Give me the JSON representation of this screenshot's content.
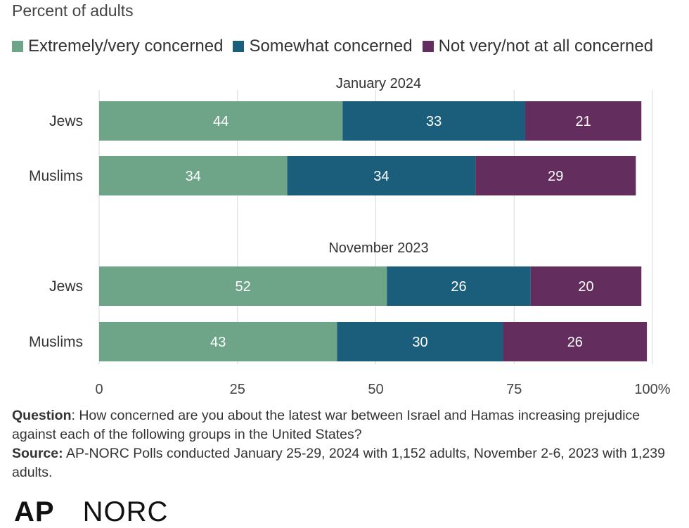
{
  "subtitle": "Percent of adults",
  "legend": [
    {
      "label": "Extremely/very concerned",
      "color": "#6ea488"
    },
    {
      "label": "Somewhat concerned",
      "color": "#1a5e7c"
    },
    {
      "label": "Not very/not at all concerned",
      "color": "#632e5e"
    }
  ],
  "chart_data": {
    "type": "bar",
    "orientation": "horizontal",
    "stacked": true,
    "xlim": [
      0,
      100
    ],
    "x_ticks": [
      "0",
      "25",
      "50",
      "75",
      "100%"
    ],
    "grid": true,
    "legend_position": "top",
    "groups": [
      {
        "title": "January 2024",
        "categories": [
          "Jews",
          "Muslims"
        ],
        "series": [
          {
            "name": "Extremely/very concerned",
            "values": [
              44,
              34
            ]
          },
          {
            "name": "Somewhat concerned",
            "values": [
              33,
              34
            ]
          },
          {
            "name": "Not very/not at all concerned",
            "values": [
              21,
              29
            ]
          }
        ]
      },
      {
        "title": "November 2023",
        "categories": [
          "Jews",
          "Muslims"
        ],
        "series": [
          {
            "name": "Extremely/very concerned",
            "values": [
              52,
              43
            ]
          },
          {
            "name": "Somewhat concerned",
            "values": [
              26,
              30
            ]
          },
          {
            "name": "Not very/not at all concerned",
            "values": [
              20,
              26
            ]
          }
        ]
      }
    ]
  },
  "notes": {
    "question_label": "Question",
    "question_text": ": How concerned are you about the latest war between Israel and Hamas increasing prejudice against each of the following groups in the United States?",
    "source_label": "Source:",
    "source_text": " AP-NORC Polls conducted January 25-29, 2024 with 1,152 adults, November 2-6, 2023 with 1,239 adults."
  },
  "logo": {
    "ap": "AP",
    "norc": "NORC"
  }
}
